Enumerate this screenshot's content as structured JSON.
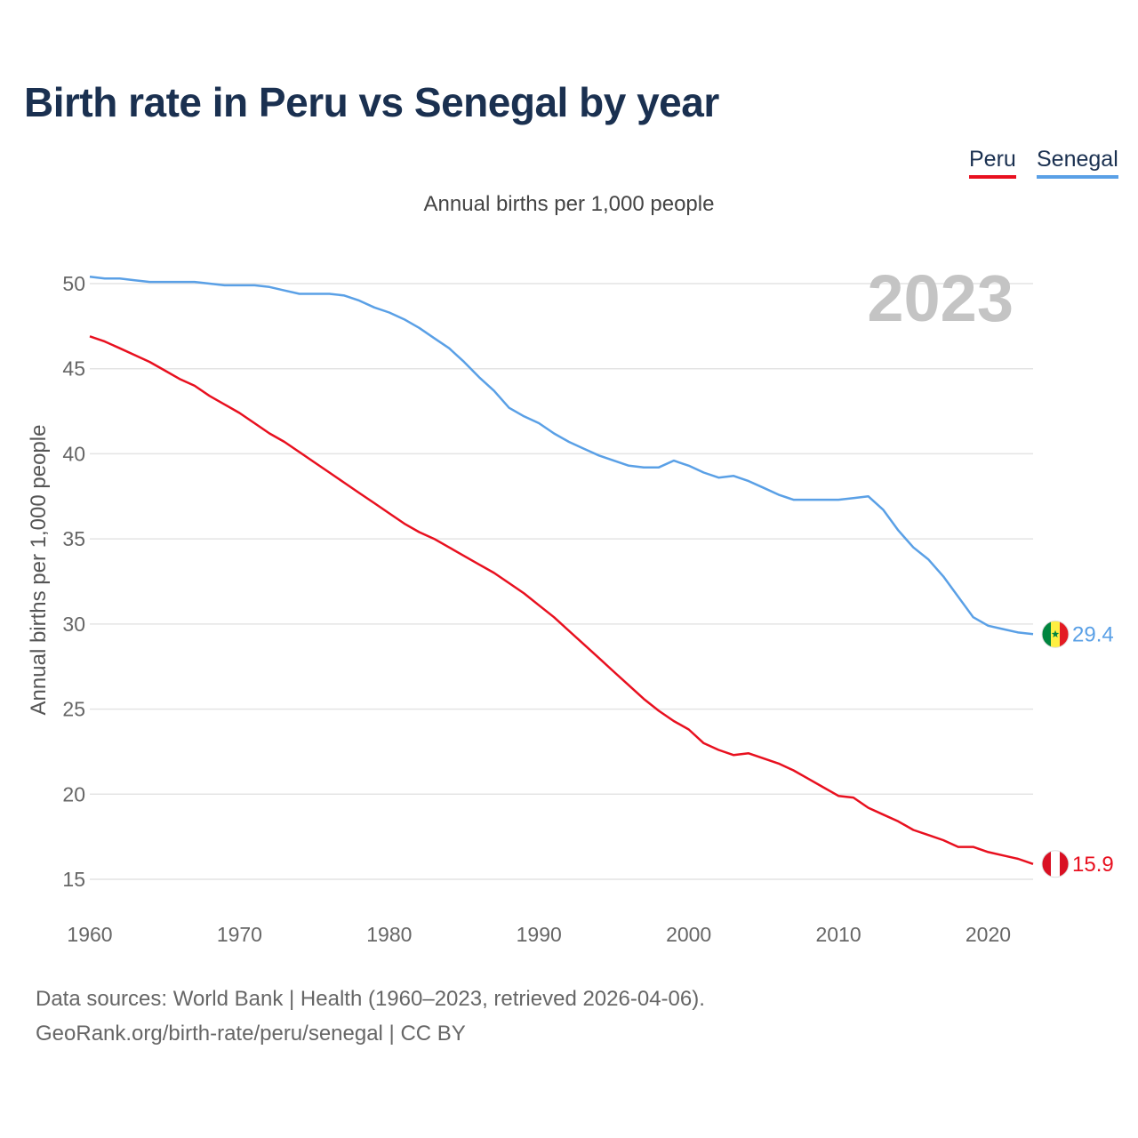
{
  "title": "Birth rate in Peru vs Senegal by year",
  "subtitle": "Annual births per 1,000 people",
  "legend": [
    {
      "name": "Peru",
      "color": "#e8101f"
    },
    {
      "name": "Senegal",
      "color": "#5aa0e6"
    }
  ],
  "year_label": "2023",
  "footer": {
    "line1": "Data sources: World Bank | Health (1960–2023, retrieved 2026-04-06).",
    "line2": "GeoRank.org/birth-rate/peru/senegal | CC BY"
  },
  "chart_data": {
    "type": "line",
    "title": "Birth rate in Peru vs Senegal by year",
    "xlabel": "",
    "ylabel": "Annual births per 1,000 people",
    "xlim": [
      1960,
      2023
    ],
    "ylim": [
      15,
      51
    ],
    "grid": true,
    "legend_position": "top-right",
    "x_ticks": [
      "1960",
      "1970",
      "1980",
      "1990",
      "2000",
      "2010",
      "2020"
    ],
    "y_ticks": [
      "15",
      "20",
      "25",
      "30",
      "35",
      "40",
      "45",
      "50"
    ],
    "x": [
      1960,
      1961,
      1962,
      1963,
      1964,
      1965,
      1966,
      1967,
      1968,
      1969,
      1970,
      1971,
      1972,
      1973,
      1974,
      1975,
      1976,
      1977,
      1978,
      1979,
      1980,
      1981,
      1982,
      1983,
      1984,
      1985,
      1986,
      1987,
      1988,
      1989,
      1990,
      1991,
      1992,
      1993,
      1994,
      1995,
      1996,
      1997,
      1998,
      1999,
      2000,
      2001,
      2002,
      2003,
      2004,
      2005,
      2006,
      2007,
      2008,
      2009,
      2010,
      2011,
      2012,
      2013,
      2014,
      2015,
      2016,
      2017,
      2018,
      2019,
      2020,
      2021,
      2022,
      2023
    ],
    "series": [
      {
        "name": "Peru",
        "color": "#e8101f",
        "end_label": "15.9",
        "values": [
          46.9,
          46.6,
          46.2,
          45.8,
          45.4,
          44.9,
          44.4,
          44.0,
          43.4,
          42.9,
          42.4,
          41.8,
          41.2,
          40.7,
          40.1,
          39.5,
          38.9,
          38.3,
          37.7,
          37.1,
          36.5,
          35.9,
          35.4,
          35.0,
          34.5,
          34.0,
          33.5,
          33.0,
          32.4,
          31.8,
          31.1,
          30.4,
          29.6,
          28.8,
          28.0,
          27.2,
          26.4,
          25.6,
          24.9,
          24.3,
          23.8,
          23.0,
          22.6,
          22.3,
          22.4,
          22.1,
          21.8,
          21.4,
          20.9,
          20.4,
          19.9,
          19.8,
          19.2,
          18.8,
          18.4,
          17.9,
          17.6,
          17.3,
          16.9,
          16.9,
          16.6,
          16.4,
          16.2,
          15.9
        ]
      },
      {
        "name": "Senegal",
        "color": "#5aa0e6",
        "end_label": "29.4",
        "values": [
          50.4,
          50.3,
          50.3,
          50.2,
          50.1,
          50.1,
          50.1,
          50.1,
          50.0,
          49.9,
          49.9,
          49.9,
          49.8,
          49.6,
          49.4,
          49.4,
          49.4,
          49.3,
          49.0,
          48.6,
          48.3,
          47.9,
          47.4,
          46.8,
          46.2,
          45.4,
          44.5,
          43.7,
          42.7,
          42.2,
          41.8,
          41.2,
          40.7,
          40.3,
          39.9,
          39.6,
          39.3,
          39.2,
          39.2,
          39.6,
          39.3,
          38.9,
          38.6,
          38.7,
          38.4,
          38.0,
          37.6,
          37.3,
          37.3,
          37.3,
          37.3,
          37.4,
          37.5,
          36.7,
          35.5,
          34.5,
          33.8,
          32.8,
          31.6,
          30.4,
          29.9,
          29.7,
          29.5,
          29.4
        ]
      }
    ]
  }
}
